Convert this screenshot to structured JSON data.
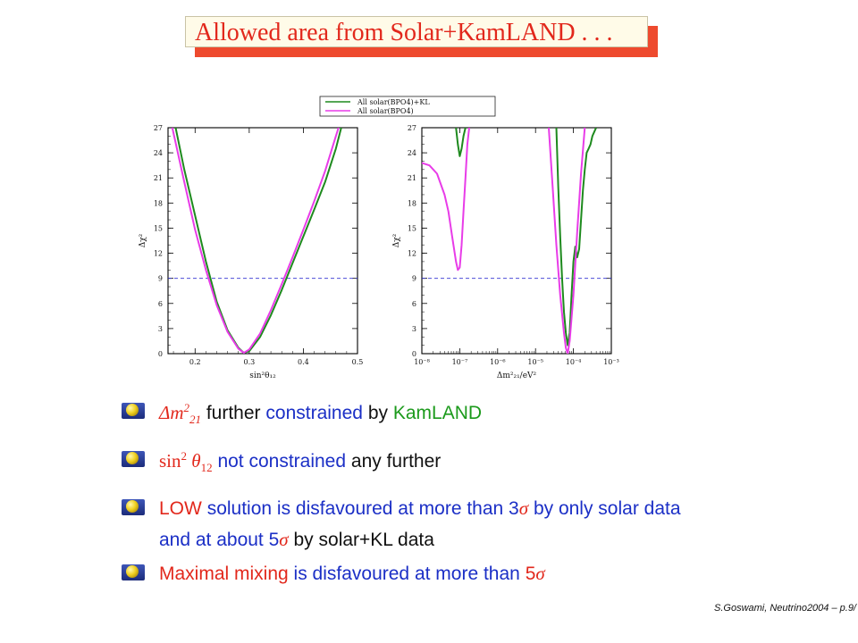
{
  "title": "Allowed area from Solar+KamLAND . . .",
  "legend": [
    "All solar(BPO4)+KL",
    "All solar(BPO4)"
  ],
  "colors": {
    "green_curve": "#1e8a1e",
    "magenta_curve": "#e83ce8",
    "threshold_line": "#3030d0",
    "red": "#e2281c",
    "blue": "#1b2fc6",
    "green_text": "#1c9a1c"
  },
  "chart_data": [
    {
      "type": "line",
      "xlabel": "sin²θ₁₂",
      "ylabel": "Δχ²",
      "xlim": [
        0.15,
        0.5
      ],
      "ylim": [
        0,
        27
      ],
      "x_ticks": [
        "0.2",
        "0.3",
        "0.4",
        "0.5"
      ],
      "y_ticks": [
        "0",
        "3",
        "6",
        "9",
        "12",
        "15",
        "18",
        "21",
        "24",
        "27"
      ],
      "threshold": 9,
      "series": [
        {
          "name": "All solar(BPO4)+KL",
          "color": "#1e8a1e",
          "x": [
            0.164,
            0.18,
            0.2,
            0.22,
            0.24,
            0.26,
            0.28,
            0.29,
            0.3,
            0.32,
            0.34,
            0.36,
            0.38,
            0.4,
            0.42,
            0.44,
            0.46,
            0.47
          ],
          "y": [
            27,
            22,
            16.5,
            11,
            6.2,
            2.8,
            0.7,
            0.1,
            0.3,
            2.0,
            4.6,
            7.6,
            10.8,
            14.0,
            17.2,
            20.5,
            24.5,
            27
          ]
        },
        {
          "name": "All solar(BPO4)",
          "color": "#e83ce8",
          "x": [
            0.158,
            0.18,
            0.2,
            0.22,
            0.24,
            0.26,
            0.28,
            0.29,
            0.3,
            0.32,
            0.34,
            0.36,
            0.38,
            0.4,
            0.42,
            0.44,
            0.46,
            0.465
          ],
          "y": [
            27,
            20.5,
            14.8,
            10.0,
            5.8,
            2.6,
            0.6,
            0.1,
            0.5,
            2.4,
            5.2,
            8.3,
            11.5,
            14.8,
            18.2,
            21.8,
            26.0,
            27
          ]
        }
      ]
    },
    {
      "type": "line",
      "xlabel": "Δm²₂₁/eV²",
      "ylabel": "Δχ²",
      "xlog": true,
      "xlim": [
        -8,
        -3
      ],
      "ylim": [
        0,
        27
      ],
      "x_ticks": [
        "10⁻⁸",
        "10⁻⁷",
        "10⁻⁶",
        "10⁻⁵",
        "10⁻⁴",
        "10⁻³"
      ],
      "y_ticks": [
        "0",
        "3",
        "6",
        "9",
        "12",
        "15",
        "18",
        "21",
        "24",
        "27"
      ],
      "threshold": 9,
      "series": [
        {
          "name": "All solar(BPO4)+KL",
          "color": "#1e8a1e",
          "segments": [
            {
              "logx": [
                -7.1,
                -7.05,
                -7.0,
                -6.95,
                -6.9,
                -6.85
              ],
              "y": [
                27,
                25,
                23.6,
                24.5,
                26,
                27
              ]
            },
            {
              "logx": [
                -4.45,
                -4.4,
                -4.35,
                -4.3,
                -4.25,
                -4.2,
                -4.15,
                -4.1,
                -4.05,
                -4.0,
                -3.95,
                -3.9,
                -3.85,
                -3.8,
                -3.75,
                -3.7,
                -3.65,
                -3.6,
                -3.55,
                -3.5,
                -3.45,
                -3.4
              ],
              "y": [
                27,
                20,
                14,
                9,
                5,
                2.5,
                1.0,
                2.5,
                7,
                11,
                12.8,
                11.5,
                12.5,
                16,
                19.5,
                22,
                24,
                24.5,
                25,
                26,
                26.5,
                27
              ]
            }
          ]
        },
        {
          "name": "All solar(BPO4)",
          "color": "#e83ce8",
          "segments": [
            {
              "logx": [
                -8.0,
                -7.8,
                -7.6,
                -7.4,
                -7.3,
                -7.2,
                -7.1,
                -7.05,
                -7.0,
                -6.95,
                -6.9,
                -6.85,
                -6.8,
                -6.75
              ],
              "y": [
                22.8,
                22.5,
                21.5,
                19,
                17,
                14,
                11,
                10,
                10.3,
                13,
                17,
                21,
                25,
                27
              ]
            },
            {
              "logx": [
                -4.65,
                -4.55,
                -4.45,
                -4.35,
                -4.25,
                -4.2,
                -4.15,
                -4.1,
                -4.0,
                -3.9,
                -3.8,
                -3.7
              ],
              "y": [
                27,
                20,
                13,
                7,
                2.5,
                0.7,
                0.0,
                1.5,
                7,
                14.5,
                21.5,
                27
              ]
            }
          ]
        }
      ]
    }
  ],
  "bullets": [
    {
      "math": "Δm",
      "math_sub": "21",
      "math_sup": "2",
      "t1": "further",
      "t2": "constrained",
      "t3": "by",
      "t4": "KamLAND"
    },
    {
      "math": "sin",
      "math_sup": "2",
      "math_theta": "θ",
      "math_sub": "12",
      "t1": "not constrained",
      "t2": "any further"
    },
    {
      "t1": "LOW",
      "t2": "solution is disfavoured at more than 3",
      "t3": "σ",
      "t4": "by only solar data",
      "l2a": "and at about 5",
      "l2b": "σ",
      "l2c": "by solar+KL data"
    },
    {
      "t1": "Maximal mixing",
      "t2": "is disfavoured at more than",
      "t3": "5",
      "t4": "σ"
    }
  ],
  "footer": "S.Goswami, Neutrino2004 – p.9/"
}
